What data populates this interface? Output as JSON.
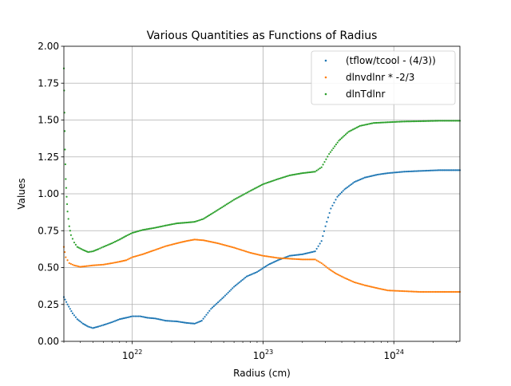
{
  "chart_data": {
    "type": "scatter",
    "title": "Various Quantities as Functions of Radius",
    "xlabel": "Radius (cm)",
    "ylabel": "Values",
    "xscale": "log",
    "xlim": [
      3e+21,
      3.2e+24
    ],
    "ylim": [
      0.0,
      2.0
    ],
    "grid": true,
    "legend_position": "top-right",
    "x_ticks": [
      {
        "value": 1e+22,
        "base": "10",
        "exp": "22"
      },
      {
        "value": 1e+23,
        "base": "10",
        "exp": "23"
      },
      {
        "value": 1e+24,
        "base": "10",
        "exp": "24"
      }
    ],
    "y_ticks": [
      "0.00",
      "0.25",
      "0.50",
      "0.75",
      "1.00",
      "1.25",
      "1.50",
      "1.75",
      "2.00"
    ],
    "series": [
      {
        "name": "(tflow/tcool - (4/3))",
        "color": "#1f77b4",
        "x": [
          3e+21,
          3.2e+21,
          3.5e+21,
          3.8e+21,
          4.2e+21,
          4.6e+21,
          5e+21,
          5.5e+21,
          6e+21,
          7e+21,
          8e+21,
          9e+21,
          1e+22,
          1.15e+22,
          1.3e+22,
          1.5e+22,
          1.8e+22,
          2.2e+22,
          2.6e+22,
          3e+22,
          3.4e+22,
          4e+22,
          5e+22,
          6e+22,
          7.5e+22,
          9e+22,
          1.1e+23,
          1.3e+23,
          1.6e+23,
          2e+23,
          2.5e+23,
          2.8e+23,
          3e+23,
          3.3e+23,
          3.7e+23,
          4.2e+23,
          5e+23,
          6e+23,
          7.5e+23,
          9e+23,
          1.2e+24,
          1.6e+24,
          2.2e+24,
          3.2e+24
        ],
        "y": [
          0.3,
          0.25,
          0.19,
          0.15,
          0.12,
          0.1,
          0.09,
          0.1,
          0.11,
          0.13,
          0.15,
          0.16,
          0.17,
          0.17,
          0.16,
          0.155,
          0.14,
          0.135,
          0.125,
          0.12,
          0.14,
          0.22,
          0.3,
          0.37,
          0.44,
          0.47,
          0.52,
          0.55,
          0.58,
          0.59,
          0.61,
          0.68,
          0.78,
          0.9,
          0.98,
          1.03,
          1.08,
          1.11,
          1.13,
          1.14,
          1.15,
          1.155,
          1.16,
          1.16
        ]
      },
      {
        "name": "dlnvdlnr * -2/3",
        "color": "#ff7f0e",
        "x": [
          3e+21,
          3.1e+21,
          3.3e+21,
          3.6e+21,
          4e+21,
          4.5e+21,
          5e+21,
          6e+21,
          7e+21,
          8e+21,
          9e+21,
          1e+22,
          1.2e+22,
          1.5e+22,
          1.8e+22,
          2.2e+22,
          2.6e+22,
          3e+22,
          3.5e+22,
          4.5e+22,
          6e+22,
          8e+22,
          1e+23,
          1.3e+23,
          1.6e+23,
          2e+23,
          2.5e+23,
          2.8e+23,
          3.2e+23,
          3.6e+23,
          4.2e+23,
          5e+23,
          6e+23,
          7.5e+23,
          9e+23,
          1.2e+24,
          1.6e+24,
          2.2e+24,
          3.2e+24
        ],
        "y": [
          0.64,
          0.57,
          0.53,
          0.515,
          0.505,
          0.51,
          0.515,
          0.52,
          0.53,
          0.54,
          0.55,
          0.57,
          0.59,
          0.62,
          0.645,
          0.665,
          0.68,
          0.69,
          0.685,
          0.665,
          0.635,
          0.6,
          0.58,
          0.565,
          0.56,
          0.555,
          0.555,
          0.53,
          0.49,
          0.46,
          0.43,
          0.4,
          0.38,
          0.36,
          0.345,
          0.34,
          0.335,
          0.335,
          0.335
        ]
      },
      {
        "name": "dlnTdlnr",
        "color": "#2ca02c",
        "x": [
          3e+21,
          3.03e+21,
          3.06e+21,
          3.1e+21,
          3.15e+21,
          3.2e+21,
          3.3e+21,
          3.4e+21,
          3.6e+21,
          3.8e+21,
          4.2e+21,
          4.6e+21,
          5e+21,
          5.5e+21,
          6e+21,
          7e+21,
          8e+21,
          9e+21,
          1e+22,
          1.2e+22,
          1.5e+22,
          1.8e+22,
          2.2e+22,
          2.6e+22,
          3e+22,
          3.5e+22,
          4.5e+22,
          6e+22,
          8e+22,
          1e+23,
          1.3e+23,
          1.6e+23,
          2e+23,
          2.5e+23,
          2.8e+23,
          3.2e+23,
          3.8e+23,
          4.5e+23,
          5.5e+23,
          7e+23,
          9e+23,
          1.2e+24,
          1.6e+24,
          2.2e+24,
          3.2e+24
        ],
        "y": [
          1.85,
          1.55,
          1.3,
          1.1,
          0.98,
          0.88,
          0.78,
          0.72,
          0.67,
          0.64,
          0.62,
          0.605,
          0.61,
          0.625,
          0.64,
          0.665,
          0.69,
          0.715,
          0.735,
          0.755,
          0.77,
          0.785,
          0.8,
          0.805,
          0.81,
          0.83,
          0.89,
          0.96,
          1.02,
          1.065,
          1.1,
          1.125,
          1.14,
          1.15,
          1.18,
          1.27,
          1.36,
          1.42,
          1.46,
          1.48,
          1.485,
          1.49,
          1.492,
          1.495,
          1.495
        ]
      }
    ]
  }
}
